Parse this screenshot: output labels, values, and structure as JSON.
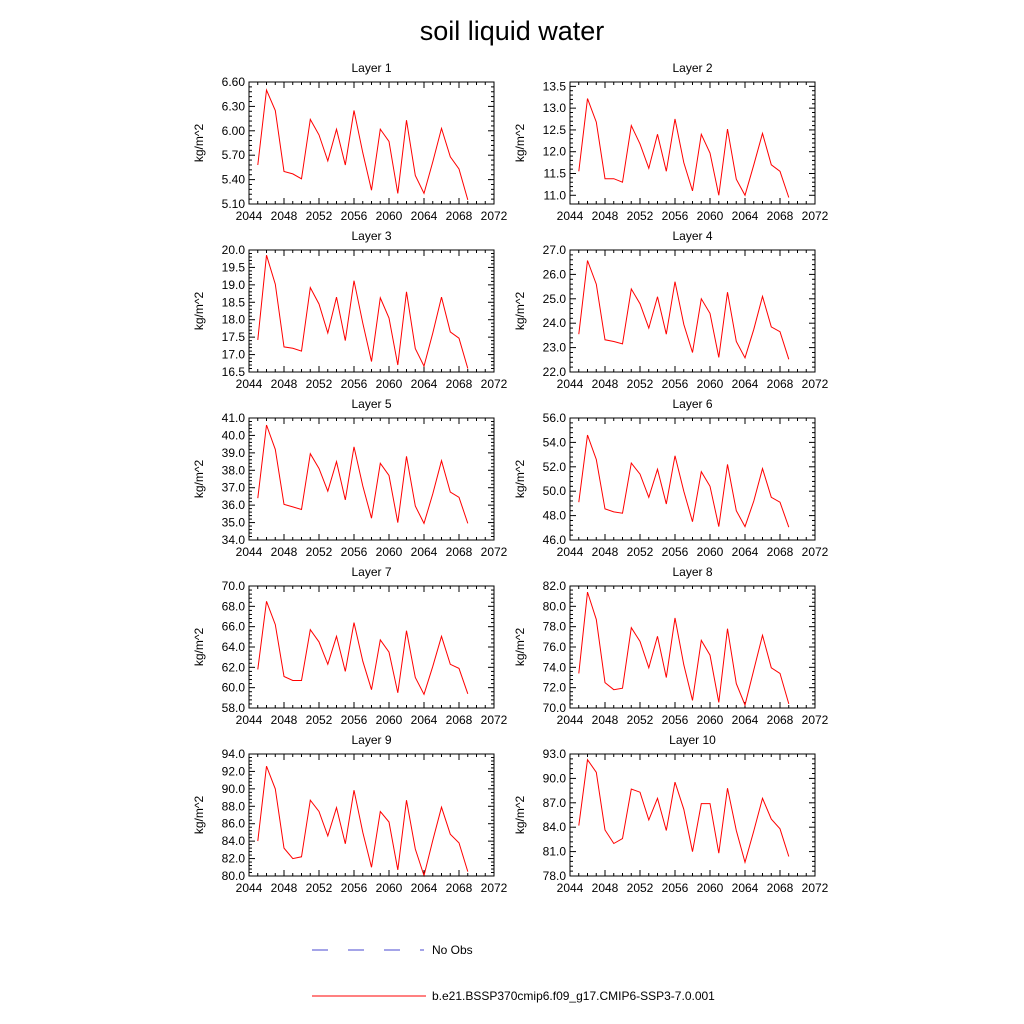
{
  "title": "soil liquid water",
  "colors": {
    "series": "#ff0000",
    "obs": "#4a4ad0",
    "axis": "#000000"
  },
  "legend": [
    {
      "label": "No Obs",
      "style": "dashed",
      "color": "#4a4ad0"
    },
    {
      "label": "b.e21.BSSP370cmip6.f09_g17.CMIP6-SSP3-7.0.001",
      "style": "solid",
      "color": "#ff0000"
    }
  ],
  "chart_data": [
    {
      "type": "line",
      "title": "Layer 1",
      "ylabel": "kg/m^2",
      "xlim": [
        2044,
        2072
      ],
      "ylim": [
        5.1,
        6.6
      ],
      "xticks": [
        2044,
        2048,
        2052,
        2056,
        2060,
        2064,
        2068,
        2072
      ],
      "yticks": [
        "5.10",
        "5.40",
        "5.70",
        "6.00",
        "6.30",
        "6.60"
      ],
      "x": [
        2045,
        2046,
        2047,
        2048,
        2049,
        2050,
        2051,
        2052,
        2053,
        2054,
        2055,
        2056,
        2057,
        2058,
        2059,
        2060,
        2061,
        2062,
        2063,
        2064,
        2065,
        2066,
        2067,
        2068,
        2069
      ],
      "series": [
        {
          "name": "b.e21.BSSP370cmip6.f09_g17.CMIP6-SSP3-7.0.001",
          "values": [
            5.58,
            6.5,
            6.25,
            5.5,
            5.47,
            5.41,
            6.14,
            5.95,
            5.63,
            6.02,
            5.58,
            6.25,
            5.73,
            5.27,
            6.02,
            5.87,
            5.23,
            6.13,
            5.45,
            5.23,
            5.62,
            6.03,
            5.68,
            5.53,
            5.15
          ]
        }
      ]
    },
    {
      "type": "line",
      "title": "Layer 2",
      "ylabel": "kg/m^2",
      "xlim": [
        2044,
        2072
      ],
      "ylim": [
        10.8,
        13.6
      ],
      "xticks": [
        2044,
        2048,
        2052,
        2056,
        2060,
        2064,
        2068,
        2072
      ],
      "yticks": [
        "11.0",
        "11.5",
        "12.0",
        "12.5",
        "13.0",
        "13.5"
      ],
      "x": [
        2045,
        2046,
        2047,
        2048,
        2049,
        2050,
        2051,
        2052,
        2053,
        2054,
        2055,
        2056,
        2057,
        2058,
        2059,
        2060,
        2061,
        2062,
        2063,
        2064,
        2065,
        2066,
        2067,
        2068,
        2069
      ],
      "series": [
        {
          "name": "b.e21.BSSP370cmip6.f09_g17.CMIP6-SSP3-7.0.001",
          "values": [
            11.55,
            13.22,
            12.68,
            11.38,
            11.38,
            11.3,
            12.6,
            12.18,
            11.62,
            12.4,
            11.55,
            12.75,
            11.75,
            11.1,
            12.4,
            11.97,
            11.0,
            12.52,
            11.37,
            11.0,
            11.7,
            12.42,
            11.7,
            11.55,
            10.95
          ]
        }
      ]
    },
    {
      "type": "line",
      "title": "Layer 3",
      "ylabel": "kg/m^2",
      "xlim": [
        2044,
        2072
      ],
      "ylim": [
        16.5,
        20.0
      ],
      "xticks": [
        2044,
        2048,
        2052,
        2056,
        2060,
        2064,
        2068,
        2072
      ],
      "yticks": [
        "16.5",
        "17.0",
        "17.5",
        "18.0",
        "18.5",
        "19.0",
        "19.5",
        "20.0"
      ],
      "x": [
        2045,
        2046,
        2047,
        2048,
        2049,
        2050,
        2051,
        2052,
        2053,
        2054,
        2055,
        2056,
        2057,
        2058,
        2059,
        2060,
        2061,
        2062,
        2063,
        2064,
        2065,
        2066,
        2067,
        2068,
        2069
      ],
      "series": [
        {
          "name": "b.e21.BSSP370cmip6.f09_g17.CMIP6-SSP3-7.0.001",
          "values": [
            17.42,
            19.85,
            19.02,
            17.22,
            17.18,
            17.1,
            18.92,
            18.45,
            17.62,
            18.65,
            17.4,
            19.12,
            17.9,
            16.8,
            18.63,
            18.05,
            16.7,
            18.8,
            17.17,
            16.67,
            17.62,
            18.65,
            17.65,
            17.47,
            16.6
          ]
        }
      ]
    },
    {
      "type": "line",
      "title": "Layer 4",
      "ylabel": "kg/m^2",
      "xlim": [
        2044,
        2072
      ],
      "ylim": [
        22.0,
        27.0
      ],
      "xticks": [
        2044,
        2048,
        2052,
        2056,
        2060,
        2064,
        2068,
        2072
      ],
      "yticks": [
        "22.0",
        "23.0",
        "24.0",
        "25.0",
        "26.0",
        "27.0"
      ],
      "x": [
        2045,
        2046,
        2047,
        2048,
        2049,
        2050,
        2051,
        2052,
        2053,
        2054,
        2055,
        2056,
        2057,
        2058,
        2059,
        2060,
        2061,
        2062,
        2063,
        2064,
        2065,
        2066,
        2067,
        2068,
        2069
      ],
      "series": [
        {
          "name": "b.e21.BSSP370cmip6.f09_g17.CMIP6-SSP3-7.0.001",
          "values": [
            23.55,
            26.57,
            25.6,
            23.32,
            23.25,
            23.15,
            25.4,
            24.8,
            23.8,
            25.08,
            23.55,
            25.7,
            23.95,
            22.8,
            25.0,
            24.4,
            22.6,
            25.27,
            23.25,
            22.58,
            23.75,
            25.1,
            23.85,
            23.65,
            22.52
          ]
        }
      ]
    },
    {
      "type": "line",
      "title": "Layer 5",
      "ylabel": "kg/m^2",
      "xlim": [
        2044,
        2072
      ],
      "ylim": [
        34.0,
        41.0
      ],
      "xticks": [
        2044,
        2048,
        2052,
        2056,
        2060,
        2064,
        2068,
        2072
      ],
      "yticks": [
        "34.0",
        "35.0",
        "36.0",
        "37.0",
        "38.0",
        "39.0",
        "40.0",
        "41.0"
      ],
      "x": [
        2045,
        2046,
        2047,
        2048,
        2049,
        2050,
        2051,
        2052,
        2053,
        2054,
        2055,
        2056,
        2057,
        2058,
        2059,
        2060,
        2061,
        2062,
        2063,
        2064,
        2065,
        2066,
        2067,
        2068,
        2069
      ],
      "series": [
        {
          "name": "b.e21.BSSP370cmip6.f09_g17.CMIP6-SSP3-7.0.001",
          "values": [
            36.4,
            40.6,
            39.2,
            36.05,
            35.9,
            35.75,
            38.95,
            38.1,
            36.8,
            38.5,
            36.3,
            39.35,
            37.1,
            35.25,
            38.4,
            37.7,
            35.0,
            38.8,
            35.95,
            34.95,
            36.65,
            38.55,
            36.75,
            36.45,
            34.95
          ]
        }
      ]
    },
    {
      "type": "line",
      "title": "Layer 6",
      "ylabel": "kg/m^2",
      "xlim": [
        2044,
        2072
      ],
      "ylim": [
        46.0,
        56.0
      ],
      "xticks": [
        2044,
        2048,
        2052,
        2056,
        2060,
        2064,
        2068,
        2072
      ],
      "yticks": [
        "46.0",
        "48.0",
        "50.0",
        "52.0",
        "54.0",
        "56.0"
      ],
      "x": [
        2045,
        2046,
        2047,
        2048,
        2049,
        2050,
        2051,
        2052,
        2053,
        2054,
        2055,
        2056,
        2057,
        2058,
        2059,
        2060,
        2061,
        2062,
        2063,
        2064,
        2065,
        2066,
        2067,
        2068,
        2069
      ],
      "series": [
        {
          "name": "b.e21.BSSP370cmip6.f09_g17.CMIP6-SSP3-7.0.001",
          "values": [
            49.1,
            54.6,
            52.6,
            48.55,
            48.3,
            48.2,
            52.3,
            51.4,
            49.5,
            51.8,
            48.95,
            52.9,
            50.0,
            47.5,
            51.6,
            50.4,
            47.1,
            52.2,
            48.4,
            47.1,
            49.2,
            51.85,
            49.5,
            49.1,
            47.05
          ]
        }
      ]
    },
    {
      "type": "line",
      "title": "Layer 7",
      "ylabel": "kg/m^2",
      "xlim": [
        2044,
        2072
      ],
      "ylim": [
        58.0,
        70.0
      ],
      "xticks": [
        2044,
        2048,
        2052,
        2056,
        2060,
        2064,
        2068,
        2072
      ],
      "yticks": [
        "58.0",
        "60.0",
        "62.0",
        "64.0",
        "66.0",
        "68.0",
        "70.0"
      ],
      "x": [
        2045,
        2046,
        2047,
        2048,
        2049,
        2050,
        2051,
        2052,
        2053,
        2054,
        2055,
        2056,
        2057,
        2058,
        2059,
        2060,
        2061,
        2062,
        2063,
        2064,
        2065,
        2066,
        2067,
        2068,
        2069
      ],
      "series": [
        {
          "name": "b.e21.BSSP370cmip6.f09_g17.CMIP6-SSP3-7.0.001",
          "values": [
            61.8,
            68.5,
            66.2,
            61.1,
            60.7,
            60.7,
            65.7,
            64.5,
            62.3,
            65.05,
            61.6,
            66.4,
            62.6,
            59.8,
            64.7,
            63.5,
            59.5,
            65.6,
            61.0,
            59.35,
            62.1,
            65.05,
            62.3,
            61.9,
            59.4
          ]
        }
      ]
    },
    {
      "type": "line",
      "title": "Layer 8",
      "ylabel": "kg/m^2",
      "xlim": [
        2044,
        2072
      ],
      "ylim": [
        70.0,
        82.0
      ],
      "xticks": [
        2044,
        2048,
        2052,
        2056,
        2060,
        2064,
        2068,
        2072
      ],
      "yticks": [
        "70.0",
        "72.0",
        "74.0",
        "76.0",
        "78.0",
        "80.0",
        "82.0"
      ],
      "x": [
        2045,
        2046,
        2047,
        2048,
        2049,
        2050,
        2051,
        2052,
        2053,
        2054,
        2055,
        2056,
        2057,
        2058,
        2059,
        2060,
        2061,
        2062,
        2063,
        2064,
        2065,
        2066,
        2067,
        2068,
        2069
      ],
      "series": [
        {
          "name": "b.e21.BSSP370cmip6.f09_g17.CMIP6-SSP3-7.0.001",
          "values": [
            73.4,
            81.4,
            78.7,
            72.5,
            71.8,
            71.95,
            77.9,
            76.55,
            73.95,
            77.05,
            73.0,
            78.85,
            74.25,
            70.75,
            76.65,
            75.2,
            70.55,
            77.8,
            72.4,
            70.3,
            73.75,
            77.15,
            73.95,
            73.4,
            70.4
          ]
        }
      ]
    },
    {
      "type": "line",
      "title": "Layer 9",
      "ylabel": "kg/m^2",
      "xlim": [
        2044,
        2072
      ],
      "ylim": [
        80.0,
        94.0
      ],
      "xticks": [
        2044,
        2048,
        2052,
        2056,
        2060,
        2064,
        2068,
        2072
      ],
      "yticks": [
        "80.0",
        "82.0",
        "84.0",
        "86.0",
        "88.0",
        "90.0",
        "92.0",
        "94.0"
      ],
      "x": [
        2045,
        2046,
        2047,
        2048,
        2049,
        2050,
        2051,
        2052,
        2053,
        2054,
        2055,
        2056,
        2057,
        2058,
        2059,
        2060,
        2061,
        2062,
        2063,
        2064,
        2065,
        2066,
        2067,
        2068,
        2069
      ],
      "series": [
        {
          "name": "b.e21.BSSP370cmip6.f09_g17.CMIP6-SSP3-7.0.001",
          "values": [
            84.0,
            92.6,
            90.0,
            83.2,
            82.0,
            82.2,
            88.7,
            87.4,
            84.6,
            87.85,
            83.7,
            89.85,
            85.0,
            81.0,
            87.4,
            86.2,
            80.7,
            88.7,
            83.1,
            80.05,
            84.1,
            87.9,
            84.8,
            83.8,
            80.5
          ]
        }
      ]
    },
    {
      "type": "line",
      "title": "Layer 10",
      "ylabel": "kg/m^2",
      "xlim": [
        2044,
        2072
      ],
      "ylim": [
        78.0,
        93.0
      ],
      "xticks": [
        2044,
        2048,
        2052,
        2056,
        2060,
        2064,
        2068,
        2072
      ],
      "yticks": [
        "78.0",
        "81.0",
        "84.0",
        "87.0",
        "90.0",
        "93.0"
      ],
      "x": [
        2045,
        2046,
        2047,
        2048,
        2049,
        2050,
        2051,
        2052,
        2053,
        2054,
        2055,
        2056,
        2057,
        2058,
        2059,
        2060,
        2061,
        2062,
        2063,
        2064,
        2065,
        2066,
        2067,
        2068,
        2069
      ],
      "series": [
        {
          "name": "b.e21.BSSP370cmip6.f09_g17.CMIP6-SSP3-7.0.001",
          "values": [
            84.2,
            92.3,
            90.75,
            83.65,
            82.0,
            82.6,
            88.7,
            88.3,
            84.9,
            87.55,
            83.6,
            89.55,
            86.2,
            81.0,
            86.9,
            86.9,
            80.8,
            88.8,
            83.6,
            79.7,
            83.55,
            87.55,
            85.0,
            83.8,
            80.4
          ]
        }
      ]
    }
  ]
}
